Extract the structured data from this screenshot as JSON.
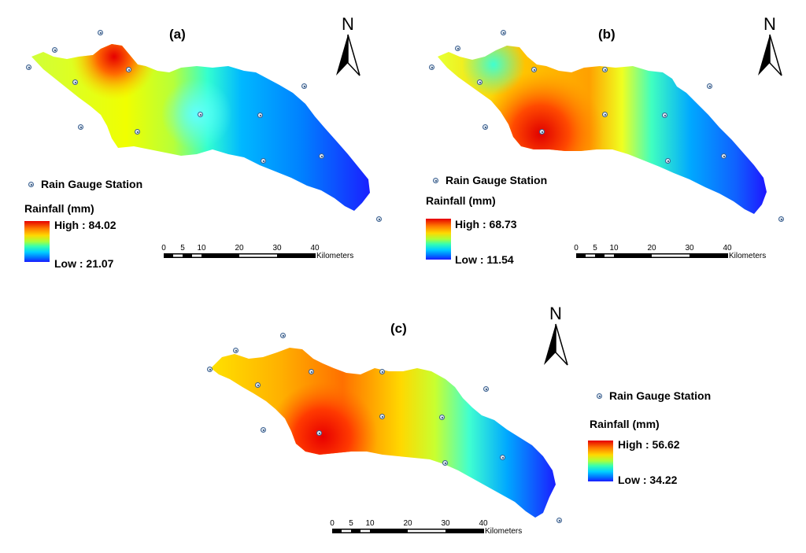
{
  "panels": [
    {
      "label": "(a)",
      "north_letter": "N",
      "station_legend": "Rain Gauge Station",
      "rainfall_title": "Rainfall (mm)",
      "high_label": "High : 84.02",
      "low_label": "Low : 21.07",
      "scale_ticks": [
        "0",
        "5",
        "10",
        "20",
        "30",
        "40"
      ],
      "scale_unit": "Kilometers"
    },
    {
      "label": "(b)",
      "north_letter": "N",
      "station_legend": "Rain Gauge Station",
      "rainfall_title": "Rainfall (mm)",
      "high_label": "High : 68.73",
      "low_label": "Low : 11.54",
      "scale_ticks": [
        "0",
        "5",
        "10",
        "20",
        "30",
        "40"
      ],
      "scale_unit": "Kilometers"
    },
    {
      "label": "(c)",
      "north_letter": "N",
      "station_legend": "Rain Gauge Station",
      "rainfall_title": "Rainfall (mm)",
      "high_label": "High : 56.62",
      "low_label": "Low : 34.22",
      "scale_ticks": [
        "0",
        "5",
        "10",
        "20",
        "30",
        "40"
      ],
      "scale_unit": "Kilometers"
    }
  ],
  "colors": {
    "high": "#e60000",
    "mid": "#ffff00",
    "low": "#1a1aff",
    "station": "#3a5f8f"
  }
}
